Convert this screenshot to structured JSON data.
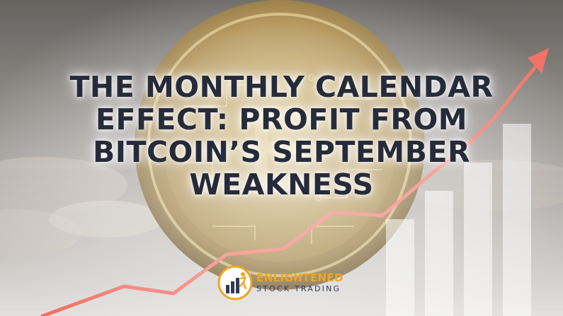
{
  "headline": {
    "line1": "THE MONTHLY CALENDAR",
    "line2": "EFFECT: PROFIT FROM",
    "line3": "BITCOIN’S SEPTEMBER",
    "line4": "WEAKNESS"
  },
  "logo": {
    "brand_line1": "ENLIGHTENED",
    "brand_line2": "STOCK TRADING",
    "icon": "bar-chart-person-icon"
  },
  "colors": {
    "headline_text": "#262b3a",
    "logo_orange": "#f0a623",
    "logo_navy": "#2d3a5a",
    "trend_arrow": "#f06a5d",
    "coin_gold": "#c9a24a"
  }
}
